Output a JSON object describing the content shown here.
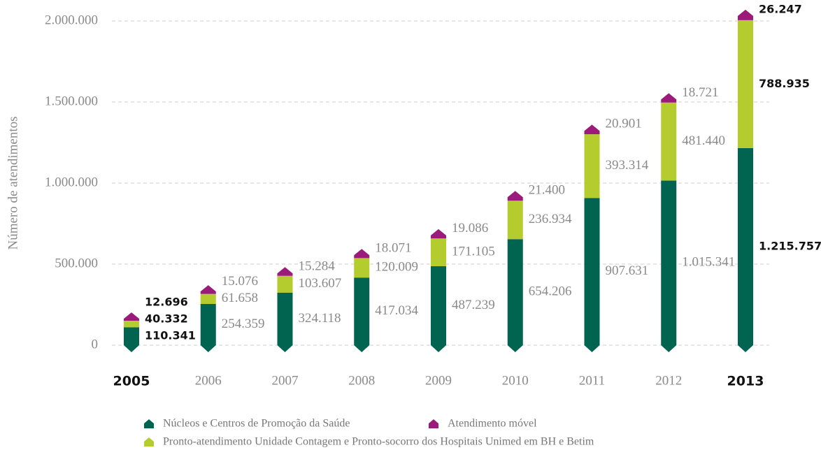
{
  "chart_data": {
    "type": "stacked_bar",
    "y_axis_label": "Número de atendimentos",
    "categories": [
      "2005",
      "2006",
      "2007",
      "2008",
      "2009",
      "2010",
      "2011",
      "2012",
      "2013"
    ],
    "bold_categories": [
      0,
      8
    ],
    "series": [
      {
        "name": "Núcleos e Centros de Promoção da Saúde",
        "color": "#006450",
        "values": [
          110341,
          254359,
          324118,
          417034,
          487239,
          654206,
          907631,
          1015341,
          1215757
        ],
        "value_labels": [
          "110.341",
          "254.359",
          "324.118",
          "417.034",
          "487.239",
          "654.206",
          "907.631",
          "1.015.341",
          "1.215.757"
        ]
      },
      {
        "name": "Pronto-atendimento Unidade Contagem e Pronto-socorro dos Hospitais Unimed em BH e Betim",
        "color": "#b5cc2e",
        "values": [
          40332,
          61658,
          103607,
          120009,
          171105,
          236934,
          393314,
          481440,
          788935
        ],
        "value_labels": [
          "40.332",
          "61.658",
          "103.607",
          "120.009",
          "171.105",
          "236.934",
          "393.314",
          "481.440",
          "788.935"
        ]
      },
      {
        "name": "Atendimento móvel",
        "color": "#9c1a7a",
        "values": [
          12696,
          15076,
          15284,
          18071,
          19086,
          21400,
          20901,
          18721,
          26247
        ],
        "value_labels": [
          "12.696",
          "15.076",
          "15.284",
          "18.071",
          "19.086",
          "21.400",
          "20.901",
          "18.721",
          "26.247"
        ]
      }
    ],
    "ylim": [
      0,
      2000000
    ],
    "yticks": [
      0,
      {
        "value": 500000,
        "label": "500.000"
      },
      {
        "value": 1000000,
        "label": "1.000.000"
      },
      {
        "value": 1500000,
        "label": "1.500.000"
      },
      {
        "value": 2000000,
        "label": "2.000.000"
      }
    ],
    "grid": true
  }
}
